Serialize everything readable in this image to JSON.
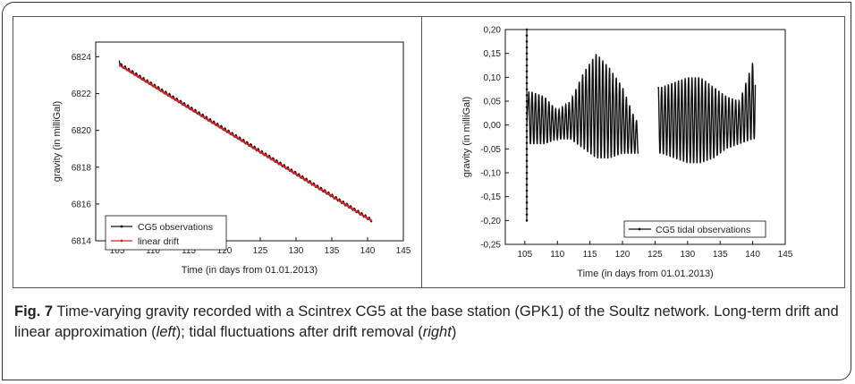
{
  "caption": {
    "figure_label": "Fig. 7",
    "text_1": " Time-varying gravity recorded with a Scintrex CG5 at the base station (GPK1) of the Soultz network. Long-term drift and linear approximation (",
    "left_word": "left",
    "text_2": "); tidal fluctuations after drift removal (",
    "right_word": "right",
    "text_3": ")"
  },
  "chart_data": [
    {
      "type": "line",
      "xlabel": "Time (in days from 01.01.2013)",
      "ylabel": "gravity (in milliGal)",
      "xlim": [
        102,
        145
      ],
      "ylim": [
        6814,
        6824.8
      ],
      "x_ticks": [
        "105",
        "110",
        "115",
        "120",
        "125",
        "130",
        "135",
        "140",
        "145"
      ],
      "y_ticks": [
        "6814",
        "6816",
        "6818",
        "6820",
        "6822",
        "6824"
      ],
      "legend_position": "bottom-left",
      "series": [
        {
          "name": "CG5 observations",
          "color": "#111111",
          "x": [
            105.3,
            140.6
          ],
          "y": [
            6823.6,
            6815.1
          ]
        },
        {
          "name": "linear drift",
          "color": "#d62020",
          "x": [
            105.3,
            140.6
          ],
          "y": [
            6823.55,
            6815.08
          ]
        }
      ]
    },
    {
      "type": "line",
      "xlabel": "Time (in days from 01.01.2013)",
      "ylabel": "gravity (in milliGal)",
      "xlim": [
        102,
        145
      ],
      "ylim": [
        -0.25,
        0.2
      ],
      "x_ticks": [
        "105",
        "110",
        "115",
        "120",
        "125",
        "130",
        "135",
        "140",
        "145"
      ],
      "y_ticks": [
        "0,20",
        "0,15",
        "0,10",
        "0,05",
        "0,00",
        "-0,05",
        "-0,10",
        "-0,15",
        "-0,20",
        "-0,25"
      ],
      "legend_position": "bottom-right",
      "series": [
        {
          "name": "CG5 tidal observations",
          "color": "#111111",
          "segments": [
            {
              "x_range": [
                105.6,
                122.4
              ],
              "period_days": 0.517,
              "description_points_x": [
                106,
                108,
                110,
                112,
                114,
                116,
                118,
                120,
                122
              ],
              "upper_envelope": [
                0.07,
                0.06,
                0.03,
                0.05,
                0.11,
                0.15,
                0.12,
                0.08,
                0.01
              ],
              "lower_envelope": [
                -0.04,
                -0.04,
                -0.03,
                -0.03,
                -0.05,
                -0.07,
                -0.07,
                -0.06,
                -0.06
              ]
            },
            {
              "x_range": [
                125.5,
                140.4
              ],
              "period_days": 0.517,
              "description_points_x": [
                126,
                128,
                130,
                132,
                134,
                136,
                138,
                140
              ],
              "upper_envelope": [
                0.08,
                0.09,
                0.1,
                0.1,
                0.08,
                0.06,
                0.05,
                0.13
              ],
              "lower_envelope": [
                -0.06,
                -0.07,
                -0.08,
                -0.08,
                -0.07,
                -0.05,
                -0.04,
                -0.03
              ]
            }
          ],
          "initial_spike": {
            "x": 105.3,
            "y_min": -0.2,
            "y_max": 0.2
          }
        }
      ]
    }
  ]
}
